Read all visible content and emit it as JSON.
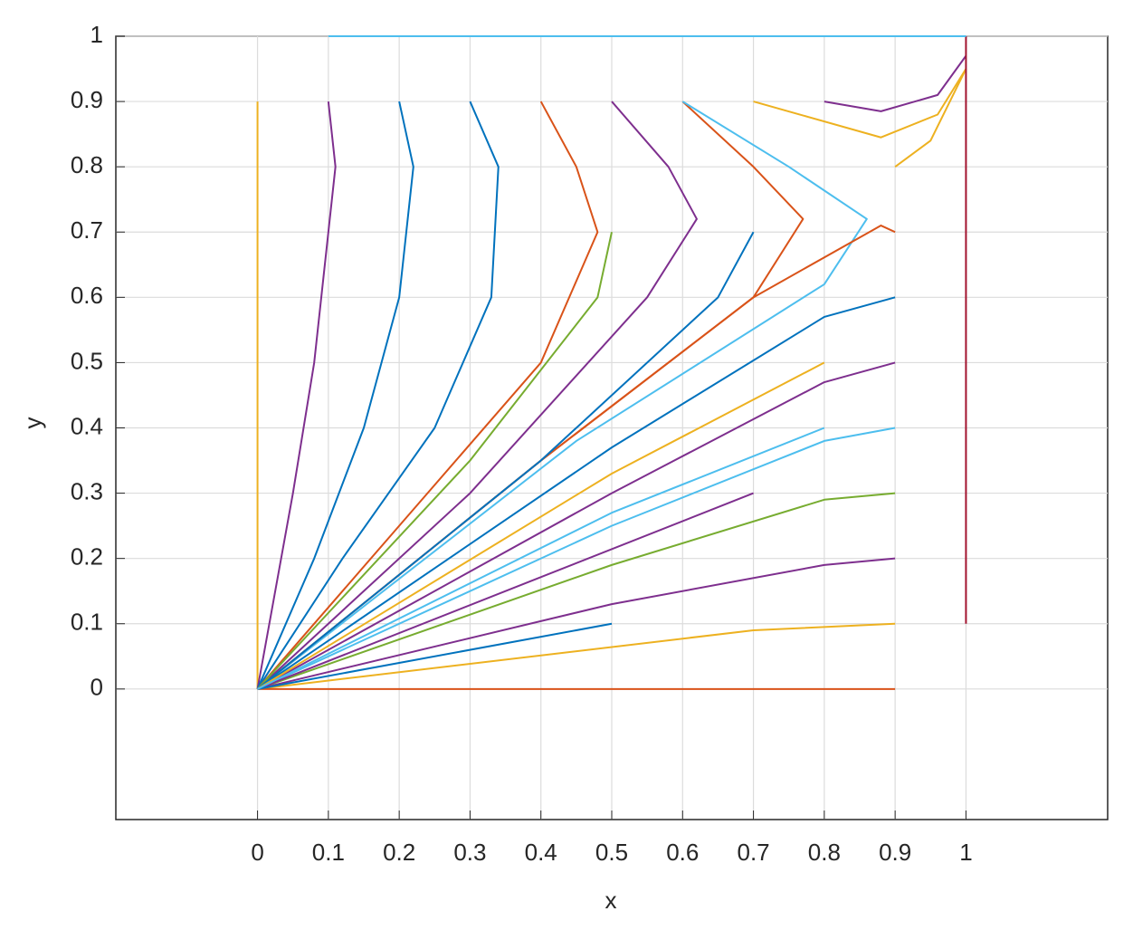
{
  "chart_data": {
    "type": "line",
    "xlabel": "x",
    "ylabel": "y",
    "xlim": [
      -0.2,
      1.2
    ],
    "ylim": [
      -0.2,
      1
    ],
    "xticks": [
      0,
      0.1,
      0.2,
      0.3,
      0.4,
      0.5,
      0.6,
      0.7,
      0.8,
      0.9,
      1
    ],
    "yticks": [
      0,
      0.1,
      0.2,
      0.3,
      0.4,
      0.5,
      0.6,
      0.7,
      0.8,
      0.9,
      1
    ],
    "grid": true,
    "series": [
      {
        "color": "#EDB120",
        "x": [
          0,
          0
        ],
        "values": [
          0.9,
          0
        ]
      },
      {
        "color": "#7E2F8E",
        "x": [
          0.1,
          0.11,
          0.1,
          0.08,
          0.05,
          0
        ],
        "values": [
          0.9,
          0.8,
          0.7,
          0.5,
          0.3,
          0
        ]
      },
      {
        "color": "#0072BD",
        "x": [
          0.2,
          0.22,
          0.2,
          0.15,
          0.08,
          0
        ],
        "values": [
          0.9,
          0.8,
          0.6,
          0.4,
          0.2,
          0
        ]
      },
      {
        "color": "#0072BD",
        "x": [
          0.3,
          0.34,
          0.33,
          0.25,
          0.12,
          0
        ],
        "values": [
          0.9,
          0.8,
          0.6,
          0.4,
          0.2,
          0
        ]
      },
      {
        "color": "#D95319",
        "x": [
          0.4,
          0.45,
          0.48,
          0.4,
          0.2,
          0
        ],
        "values": [
          0.9,
          0.8,
          0.7,
          0.5,
          0.25,
          0
        ]
      },
      {
        "color": "#7E2F8E",
        "x": [
          0.5,
          0.58,
          0.62,
          0.55,
          0.3,
          0
        ],
        "values": [
          0.9,
          0.8,
          0.72,
          0.6,
          0.3,
          0
        ]
      },
      {
        "color": "#D95319",
        "x": [
          0.6,
          0.7,
          0.77,
          0.7,
          0.4,
          0
        ],
        "values": [
          0.9,
          0.8,
          0.72,
          0.6,
          0.35,
          0
        ]
      },
      {
        "color": "#4DBEEE",
        "x": [
          0.6,
          0.75,
          0.86,
          0.8,
          0.45,
          0
        ],
        "values": [
          0.9,
          0.8,
          0.72,
          0.62,
          0.38,
          0
        ]
      },
      {
        "color": "#EDB120",
        "x": [
          0.7,
          0.88,
          0.96,
          1
        ],
        "values": [
          0.9,
          0.845,
          0.88,
          0.95
        ]
      },
      {
        "color": "#7E2F8E",
        "x": [
          0.8,
          0.88,
          0.96,
          1
        ],
        "values": [
          0.9,
          0.885,
          0.91,
          0.97
        ]
      },
      {
        "color": "#EDB120",
        "x": [
          0.9,
          0.95,
          1
        ],
        "values": [
          0.8,
          0.84,
          0.95
        ]
      },
      {
        "color": "#D95319",
        "x": [
          0.9,
          0.88,
          0.7,
          0.4,
          0
        ],
        "values": [
          0.7,
          0.71,
          0.6,
          0.35,
          0
        ]
      },
      {
        "color": "#0072BD",
        "x": [
          0.9,
          0.8,
          0.5,
          0
        ],
        "values": [
          0.6,
          0.57,
          0.37,
          0
        ]
      },
      {
        "color": "#7E2F8E",
        "x": [
          0.9,
          0.8,
          0.5,
          0
        ],
        "values": [
          0.5,
          0.47,
          0.3,
          0
        ]
      },
      {
        "color": "#4DBEEE",
        "x": [
          0.9,
          0.8,
          0.5,
          0
        ],
        "values": [
          0.4,
          0.38,
          0.25,
          0
        ]
      },
      {
        "color": "#77AC30",
        "x": [
          0.9,
          0.8,
          0.5,
          0
        ],
        "values": [
          0.3,
          0.29,
          0.19,
          0
        ]
      },
      {
        "color": "#7E2F8E",
        "x": [
          0.9,
          0.8,
          0.5,
          0
        ],
        "values": [
          0.2,
          0.19,
          0.13,
          0
        ]
      },
      {
        "color": "#EDB120",
        "x": [
          0.9,
          0.7,
          0
        ],
        "values": [
          0.1,
          0.09,
          0
        ]
      },
      {
        "color": "#D95319",
        "x": [
          0.9,
          0
        ],
        "values": [
          0,
          0
        ]
      },
      {
        "color": "#77AC30",
        "x": [
          0.5,
          0.48,
          0.3,
          0
        ],
        "values": [
          0.7,
          0.6,
          0.35,
          0
        ]
      },
      {
        "color": "#0072BD",
        "x": [
          0.7,
          0.65,
          0.4,
          0
        ],
        "values": [
          0.7,
          0.6,
          0.35,
          0
        ]
      },
      {
        "color": "#EDB120",
        "x": [
          0.8,
          0.5,
          0
        ],
        "values": [
          0.5,
          0.33,
          0
        ]
      },
      {
        "color": "#7E2F8E",
        "x": [
          0.7,
          0
        ],
        "values": [
          0.3,
          0
        ]
      },
      {
        "color": "#0072BD",
        "x": [
          0.5,
          0
        ],
        "values": [
          0.1,
          0
        ]
      },
      {
        "color": "#4DBEEE",
        "x": [
          0.8,
          0.5,
          0
        ],
        "values": [
          0.4,
          0.27,
          0
        ]
      },
      {
        "color": "#A2142F",
        "x": [
          1,
          1
        ],
        "values": [
          1,
          0.1
        ]
      },
      {
        "color": "#4DBEEE",
        "x": [
          0.1,
          1
        ],
        "values": [
          1,
          1
        ]
      }
    ]
  }
}
